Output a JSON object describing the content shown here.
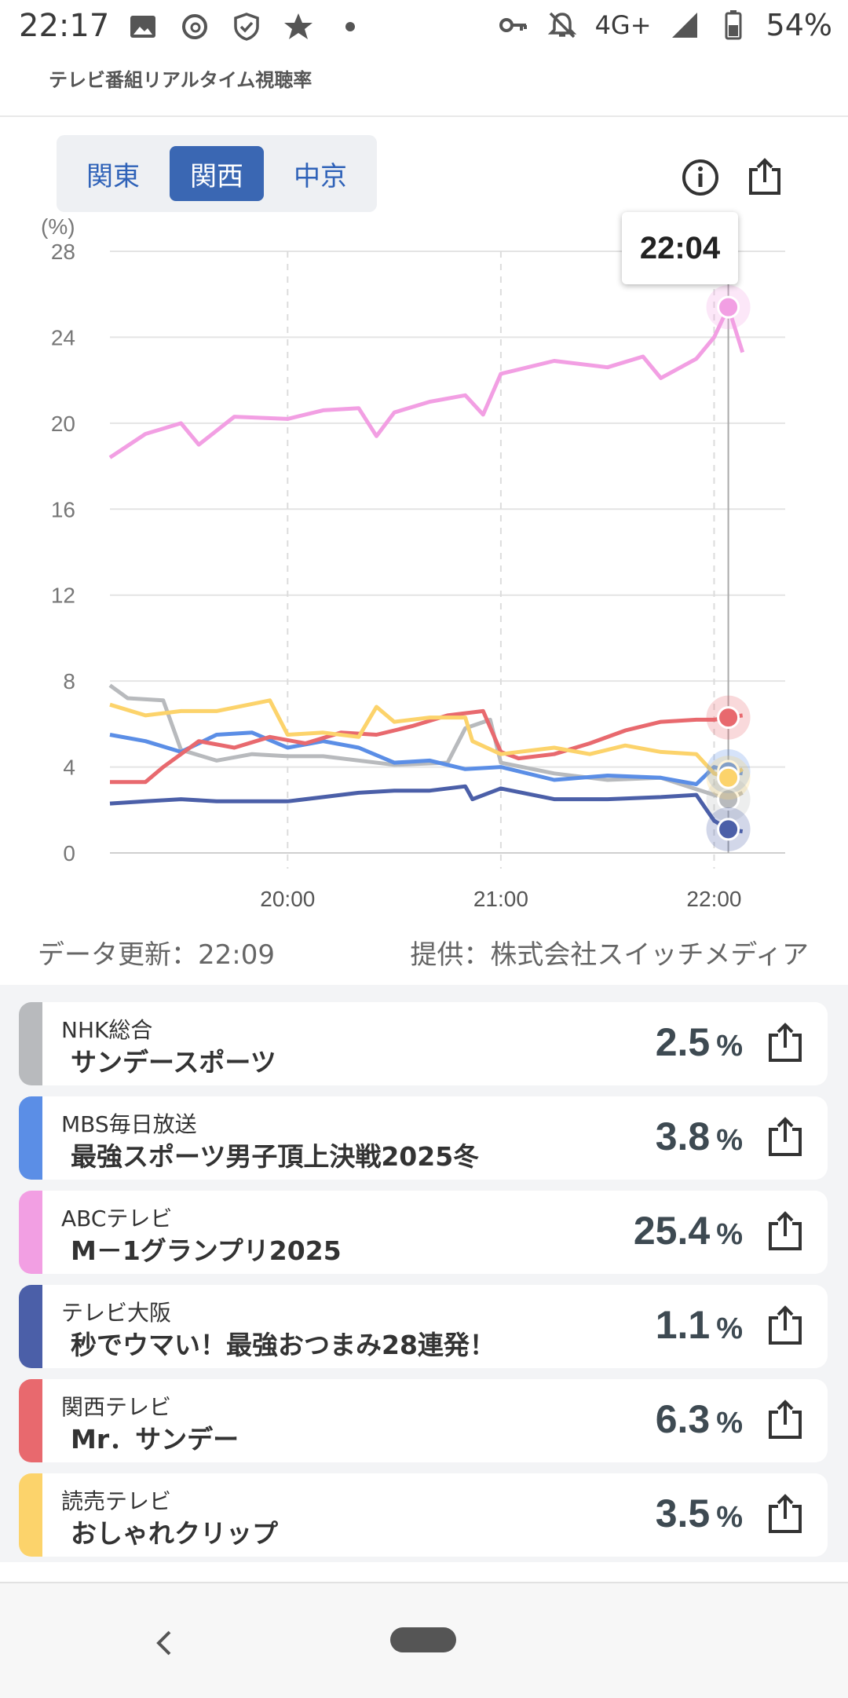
{
  "status_bar": {
    "time": "22:17",
    "network": "4G+",
    "battery": "54%",
    "icons_left": [
      "image-icon",
      "threads-icon",
      "shield-check-icon",
      "star-icon",
      "dot-icon"
    ],
    "icons_right": [
      "key-icon",
      "bell-off-icon",
      "signal-icon",
      "battery-icon"
    ]
  },
  "header": {
    "subtitle": "テレビ番組リアルタイム視聴率"
  },
  "region_tabs": [
    {
      "label": "関東",
      "active": false
    },
    {
      "label": "関西",
      "active": true
    },
    {
      "label": "中京",
      "active": false
    }
  ],
  "chart_tooltip": "22:04",
  "chart_data": {
    "type": "line",
    "ylabel": "(%)",
    "ylim": [
      0,
      28
    ],
    "yticks": [
      "0",
      "4",
      "8",
      "12",
      "16",
      "20",
      "24",
      "28"
    ],
    "xticks": [
      "20:00",
      "21:00",
      "22:00"
    ],
    "grid": true,
    "series": [
      {
        "color": "#f29fe3",
        "points": [
          [
            "19:10",
            18.4
          ],
          [
            "19:20",
            19.5
          ],
          [
            "19:30",
            20.0
          ],
          [
            "19:35",
            19.0
          ],
          [
            "19:45",
            20.3
          ],
          [
            "20:00",
            20.2
          ],
          [
            "20:10",
            20.6
          ],
          [
            "20:20",
            20.7
          ],
          [
            "20:25",
            19.4
          ],
          [
            "20:30",
            20.5
          ],
          [
            "20:40",
            21.0
          ],
          [
            "20:50",
            21.3
          ],
          [
            "20:55",
            20.4
          ],
          [
            "21:00",
            22.3
          ],
          [
            "21:15",
            22.9
          ],
          [
            "21:30",
            22.6
          ],
          [
            "21:40",
            23.1
          ],
          [
            "21:45",
            22.1
          ],
          [
            "21:55",
            23.0
          ],
          [
            "22:00",
            24.0
          ],
          [
            "22:04",
            25.4
          ],
          [
            "22:08",
            23.3
          ]
        ]
      },
      {
        "color": "#b8babd",
        "points": [
          [
            "19:10",
            7.8
          ],
          [
            "19:15",
            7.2
          ],
          [
            "19:25",
            7.1
          ],
          [
            "19:30",
            4.8
          ],
          [
            "19:40",
            4.3
          ],
          [
            "19:50",
            4.6
          ],
          [
            "20:00",
            4.5
          ],
          [
            "20:10",
            4.5
          ],
          [
            "20:30",
            4.1
          ],
          [
            "20:45",
            4.2
          ],
          [
            "20:50",
            5.8
          ],
          [
            "20:57",
            6.2
          ],
          [
            "21:00",
            4.2
          ],
          [
            "21:15",
            3.7
          ],
          [
            "21:30",
            3.4
          ],
          [
            "21:45",
            3.5
          ],
          [
            "22:00",
            2.7
          ],
          [
            "22:04",
            2.5
          ],
          [
            "22:08",
            2.8
          ]
        ]
      },
      {
        "color": "#5b8ee6",
        "points": [
          [
            "19:10",
            5.5
          ],
          [
            "19:20",
            5.2
          ],
          [
            "19:30",
            4.7
          ],
          [
            "19:40",
            5.5
          ],
          [
            "19:50",
            5.6
          ],
          [
            "20:00",
            4.9
          ],
          [
            "20:10",
            5.2
          ],
          [
            "20:20",
            4.9
          ],
          [
            "20:30",
            4.2
          ],
          [
            "20:40",
            4.3
          ],
          [
            "20:50",
            3.9
          ],
          [
            "21:00",
            4.0
          ],
          [
            "21:15",
            3.4
          ],
          [
            "21:30",
            3.6
          ],
          [
            "21:45",
            3.5
          ],
          [
            "21:55",
            3.2
          ],
          [
            "22:00",
            4.0
          ],
          [
            "22:04",
            3.8
          ],
          [
            "22:08",
            3.7
          ]
        ]
      },
      {
        "color": "#4b5fa8",
        "points": [
          [
            "19:10",
            2.3
          ],
          [
            "19:20",
            2.4
          ],
          [
            "19:30",
            2.5
          ],
          [
            "19:40",
            2.4
          ],
          [
            "19:50",
            2.4
          ],
          [
            "20:00",
            2.4
          ],
          [
            "20:10",
            2.6
          ],
          [
            "20:20",
            2.8
          ],
          [
            "20:30",
            2.9
          ],
          [
            "20:40",
            2.9
          ],
          [
            "20:50",
            3.1
          ],
          [
            "20:52",
            2.5
          ],
          [
            "21:00",
            3.0
          ],
          [
            "21:15",
            2.5
          ],
          [
            "21:30",
            2.5
          ],
          [
            "21:45",
            2.6
          ],
          [
            "21:55",
            2.7
          ],
          [
            "22:00",
            1.5
          ],
          [
            "22:04",
            1.1
          ],
          [
            "22:08",
            1.0
          ]
        ]
      },
      {
        "color": "#e8696e",
        "points": [
          [
            "19:10",
            3.3
          ],
          [
            "19:20",
            3.3
          ],
          [
            "19:25",
            4.0
          ],
          [
            "19:35",
            5.2
          ],
          [
            "19:45",
            4.9
          ],
          [
            "19:55",
            5.4
          ],
          [
            "20:05",
            5.1
          ],
          [
            "20:15",
            5.6
          ],
          [
            "20:25",
            5.5
          ],
          [
            "20:35",
            5.9
          ],
          [
            "20:45",
            6.4
          ],
          [
            "20:55",
            6.6
          ],
          [
            "21:00",
            4.7
          ],
          [
            "21:05",
            4.4
          ],
          [
            "21:15",
            4.6
          ],
          [
            "21:25",
            5.1
          ],
          [
            "21:35",
            5.7
          ],
          [
            "21:45",
            6.1
          ],
          [
            "21:55",
            6.2
          ],
          [
            "22:00",
            6.2
          ],
          [
            "22:04",
            6.3
          ],
          [
            "22:08",
            6.4
          ]
        ]
      },
      {
        "color": "#fcd36b",
        "points": [
          [
            "19:10",
            6.9
          ],
          [
            "19:20",
            6.4
          ],
          [
            "19:30",
            6.6
          ],
          [
            "19:40",
            6.6
          ],
          [
            "19:55",
            7.1
          ],
          [
            "20:00",
            5.5
          ],
          [
            "20:10",
            5.6
          ],
          [
            "20:20",
            5.4
          ],
          [
            "20:25",
            6.8
          ],
          [
            "20:30",
            6.1
          ],
          [
            "20:40",
            6.3
          ],
          [
            "20:50",
            6.3
          ],
          [
            "20:52",
            5.2
          ],
          [
            "21:00",
            4.6
          ],
          [
            "21:15",
            4.9
          ],
          [
            "21:25",
            4.6
          ],
          [
            "21:35",
            5.0
          ],
          [
            "21:45",
            4.7
          ],
          [
            "21:55",
            4.6
          ],
          [
            "22:00",
            3.7
          ],
          [
            "22:04",
            3.5
          ],
          [
            "22:08",
            3.9
          ]
        ]
      }
    ]
  },
  "chart_footer": {
    "updated": "データ更新：22:09",
    "provider": "提供：株式会社スイッチメディア"
  },
  "programs": [
    {
      "station": "NHK総合",
      "program": "サンデースポーツ",
      "rate": "2.5",
      "unit": "%",
      "color": "#b8babd"
    },
    {
      "station": "MBS毎日放送",
      "program": "最強スポーツ男子頂上決戦2025冬",
      "rate": "3.8",
      "unit": "%",
      "color": "#5b8ee6"
    },
    {
      "station": "ABCテレビ",
      "program": "M－1グランプリ2025",
      "rate": "25.4",
      "unit": "%",
      "color": "#f29fe3"
    },
    {
      "station": "テレビ大阪",
      "program": "秒でウマい！最強おつまみ28連発！",
      "rate": "1.1",
      "unit": "%",
      "color": "#4b5fa8"
    },
    {
      "station": "関西テレビ",
      "program": "Mr．サンデー",
      "rate": "6.3",
      "unit": "%",
      "color": "#e8696e"
    },
    {
      "station": "読売テレビ",
      "program": "おしゃれクリップ",
      "rate": "3.5",
      "unit": "%",
      "color": "#fcd36b"
    }
  ]
}
